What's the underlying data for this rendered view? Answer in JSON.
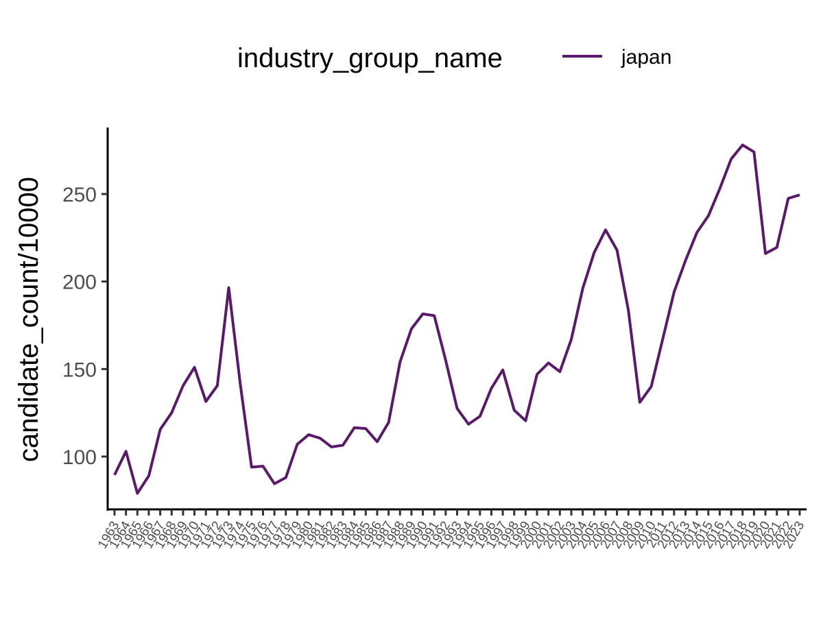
{
  "chart_data": {
    "type": "line",
    "title": "",
    "xlabel": "",
    "ylabel": "candidate_count/10000",
    "legend": {
      "title": "industry_group_name",
      "position": "top"
    },
    "x": [
      "1963",
      "1964",
      "1965",
      "1966",
      "1967",
      "1968",
      "1969",
      "1970",
      "1971",
      "1972",
      "1973",
      "1974",
      "1975",
      "1976",
      "1977",
      "1978",
      "1979",
      "1980",
      "1981",
      "1982",
      "1983",
      "1984",
      "1985",
      "1986",
      "1987",
      "1988",
      "1989",
      "1990",
      "1991",
      "1992",
      "1993",
      "1994",
      "1995",
      "1996",
      "1997",
      "1998",
      "1999",
      "2000",
      "2001",
      "2002",
      "2003",
      "2004",
      "2005",
      "2006",
      "2007",
      "2008",
      "2009",
      "2010",
      "2011",
      "2012",
      "2013",
      "2014",
      "2015",
      "2016",
      "2017",
      "2018",
      "2019",
      "2020",
      "2021",
      "2022",
      "2023"
    ],
    "series": [
      {
        "name": "japan",
        "color": "#5a1a6b",
        "values": [
          89.5,
          103,
          79,
          89,
          115.5,
          125,
          140.5,
          151,
          131.5,
          140.5,
          196.5,
          142,
          94,
          94.5,
          84.5,
          88,
          107,
          112.5,
          110.5,
          105.5,
          106.5,
          116.5,
          116,
          108.5,
          119.5,
          154,
          173,
          181.5,
          180.5,
          155,
          127.5,
          118.5,
          123,
          139,
          149.5,
          126.5,
          120.5,
          147,
          153.5,
          148.5,
          167,
          196,
          216.5,
          229.5,
          218,
          183.5,
          131,
          140,
          167,
          194,
          212,
          228,
          237.5,
          253,
          270,
          278,
          274,
          216,
          219.5,
          247.5,
          249.5
        ]
      }
    ],
    "yticks": [
      100,
      150,
      200,
      250
    ],
    "ylim": [
      70,
      288
    ],
    "grid": false
  }
}
